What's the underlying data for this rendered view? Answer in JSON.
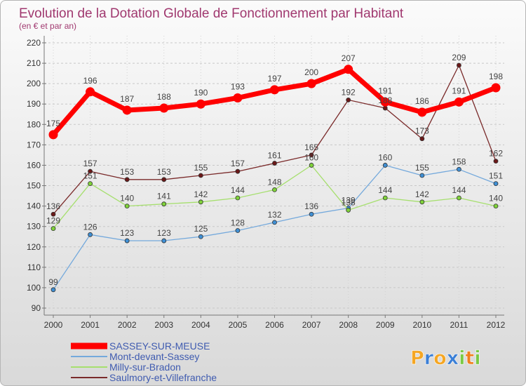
{
  "chart_data": {
    "type": "line",
    "title": "Evolution de la Dotation Globale de Fonctionnement par Habitant",
    "subtitle": "(en € et par an)",
    "xlabel": "",
    "ylabel": "",
    "x": [
      "2000",
      "2001",
      "2002",
      "2003",
      "2004",
      "2005",
      "2006",
      "2007",
      "2008",
      "2009",
      "2010",
      "2011",
      "2012"
    ],
    "ylim": [
      90,
      220
    ],
    "yticks": [
      90,
      100,
      110,
      120,
      130,
      140,
      150,
      160,
      170,
      180,
      190,
      200,
      210,
      220
    ],
    "grid": true,
    "legend": "bottom-left",
    "data_labels": true,
    "series": [
      {
        "name": "SASSEY-SUR-MEUSE",
        "color": "#ff0000",
        "marker_color": "#ff0000",
        "values": [
          175,
          196,
          187,
          188,
          190,
          193,
          197,
          200,
          207,
          191,
          186,
          191,
          198
        ]
      },
      {
        "name": "Mont-devant-Sassey",
        "color": "#74a9dc",
        "marker_color": "#3f8fd4",
        "values": [
          99,
          126,
          123,
          123,
          125,
          128,
          132,
          136,
          139,
          160,
          155,
          158,
          151
        ]
      },
      {
        "name": "Milly-sur-Bradon",
        "color": "#a6df6e",
        "marker_color": "#7fd23a",
        "values": [
          129,
          151,
          140,
          141,
          142,
          144,
          148,
          160,
          138,
          144,
          142,
          144,
          140
        ]
      },
      {
        "name": "Saulmory-et-Villefranche",
        "color": "#7a2a2a",
        "marker_color": "#6b1818",
        "values": [
          136,
          157,
          153,
          153,
          155,
          157,
          161,
          165,
          192,
          188,
          173,
          209,
          162
        ]
      }
    ]
  },
  "logo": {
    "text": "Proxiti",
    "colors": [
      "#f5a623",
      "#3b7fd6",
      "#f5a623",
      "#3b7fd6",
      "#7ac943",
      "#f07f1d",
      "#7ac943"
    ]
  }
}
